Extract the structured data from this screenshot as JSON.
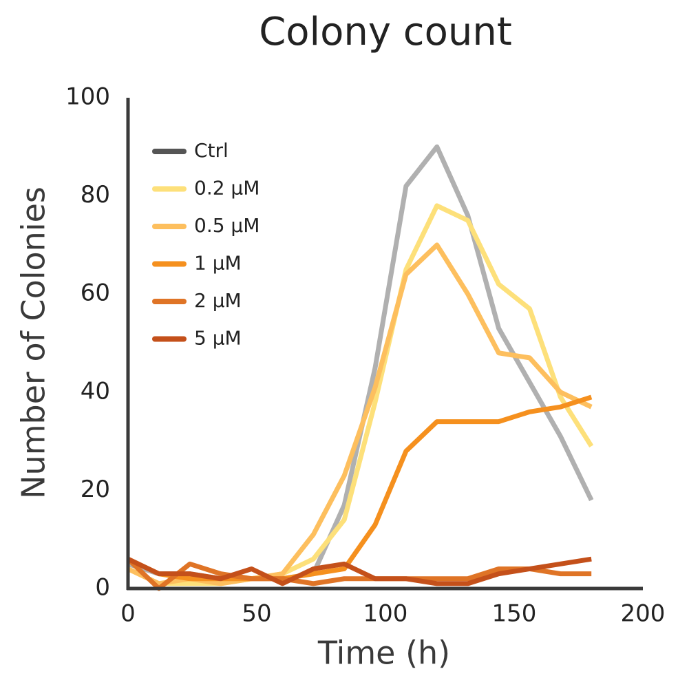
{
  "chart_data": {
    "type": "line",
    "title": "Colony count",
    "x_label": "Time (h)",
    "y_label": "Number of Colonies",
    "x": [
      0,
      12,
      24,
      36,
      48,
      60,
      72,
      84,
      96,
      108,
      120,
      132,
      144,
      156,
      168,
      180
    ],
    "series": [
      {
        "name": "Ctrl",
        "color": "#b0b0b0",
        "values": [
          5,
          3,
          3,
          2,
          2,
          2,
          3,
          17,
          45,
          82,
          90,
          76,
          53,
          42,
          31,
          18
        ]
      },
      {
        "name": "0.2 µM",
        "color": "#fde07a",
        "values": [
          4,
          1,
          1,
          1,
          2,
          3,
          6,
          14,
          38,
          65,
          78,
          75,
          62,
          57,
          39,
          29
        ]
      },
      {
        "name": "0.5 µM",
        "color": "#fdbf5e",
        "values": [
          4,
          1,
          2,
          1,
          2,
          3,
          11,
          23,
          41,
          64,
          70,
          60,
          48,
          47,
          40,
          37
        ]
      },
      {
        "name": "1 µM",
        "color": "#f5901e",
        "values": [
          6,
          3,
          2,
          2,
          2,
          2,
          3,
          4,
          13,
          28,
          34,
          34,
          34,
          36,
          37,
          39
        ]
      },
      {
        "name": "2 µM",
        "color": "#df7426",
        "values": [
          6,
          0,
          5,
          3,
          2,
          2,
          1,
          2,
          2,
          2,
          2,
          2,
          4,
          4,
          3,
          3
        ]
      },
      {
        "name": "5 µM",
        "color": "#c4501a",
        "values": [
          6,
          3,
          3,
          2,
          4,
          1,
          4,
          5,
          2,
          2,
          1,
          1,
          3,
          4,
          5,
          6
        ]
      }
    ],
    "xlim": [
      0,
      200
    ],
    "xticks": [
      0,
      50,
      100,
      150,
      200
    ],
    "ylim": [
      0,
      100
    ],
    "yticks": [
      0,
      20,
      40,
      60,
      80,
      100
    ],
    "grid": false,
    "legend": "upper left"
  }
}
